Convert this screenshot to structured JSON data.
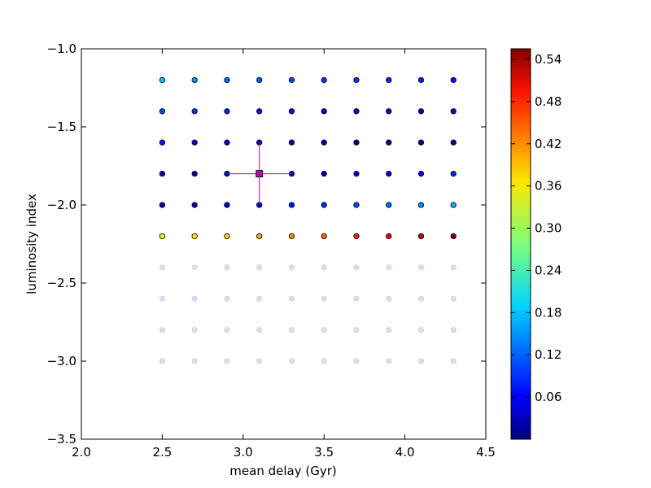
{
  "chart_data": {
    "type": "scatter",
    "title": "",
    "xlabel": "mean delay (Gyr)",
    "ylabel": "luminosity index",
    "xlim": [
      2.0,
      4.5
    ],
    "ylim": [
      -3.5,
      -1.0
    ],
    "xticks": [
      "2.0",
      "2.5",
      "3.0",
      "3.5",
      "4.0",
      "4.5"
    ],
    "yticks": [
      "−1.0",
      "−1.5",
      "−2.0",
      "−2.5",
      "−3.0",
      "−3.5"
    ],
    "grid": false,
    "colormap": "jet",
    "colorbar": {
      "range": [
        0.0,
        0.555
      ],
      "ticks": [
        0.06,
        0.12,
        0.18,
        0.24,
        0.3,
        0.36,
        0.42,
        0.48,
        0.54
      ],
      "tick_labels": [
        "0.06",
        "0.12",
        "0.18",
        "0.24",
        "0.30",
        "0.36",
        "0.42",
        "0.48",
        "0.54"
      ]
    },
    "x_values": [
      2.5,
      2.7,
      2.9,
      3.1,
      3.3,
      3.5,
      3.7,
      3.9,
      4.1,
      4.3
    ],
    "series": [
      {
        "y": -1.2,
        "values": [
          0.18,
          0.15,
          0.13,
          0.12,
          0.11,
          0.1,
          0.1,
          0.09,
          0.09,
          0.08
        ]
      },
      {
        "y": -1.4,
        "values": [
          0.11,
          0.1,
          0.09,
          0.08,
          0.07,
          0.06,
          0.05,
          0.05,
          0.04,
          0.04
        ]
      },
      {
        "y": -1.6,
        "values": [
          0.08,
          0.06,
          0.05,
          0.04,
          0.03,
          0.03,
          0.02,
          0.02,
          0.02,
          0.02
        ]
      },
      {
        "y": -1.8,
        "values": [
          0.02,
          0.02,
          0.02,
          0.02,
          0.03,
          0.03,
          0.04,
          0.05,
          0.07,
          0.09
        ]
      },
      {
        "y": -2.0,
        "values": [
          0.03,
          0.04,
          0.05,
          0.06,
          0.08,
          0.09,
          0.11,
          0.13,
          0.15,
          0.17
        ]
      },
      {
        "y": -2.2,
        "values": [
          0.33,
          0.35,
          0.37,
          0.39,
          0.41,
          0.43,
          0.47,
          0.49,
          0.51,
          0.55
        ]
      }
    ],
    "faded_points": {
      "y_values": [
        -2.4,
        -2.6,
        -2.8,
        -3.0
      ],
      "color": "#dcdcf0"
    },
    "best_fit": {
      "x": 3.1,
      "y": -1.8,
      "xerr": 0.2,
      "yerr": 0.2,
      "color": "#bf00bf"
    }
  }
}
